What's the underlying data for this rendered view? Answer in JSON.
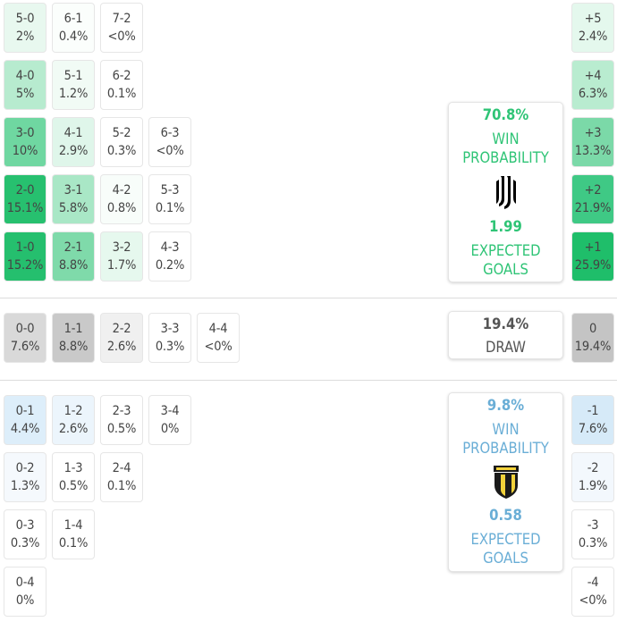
{
  "home": {
    "win_pct": "70.8%",
    "win_label": "WIN\nPROBABILITY",
    "xg_value": "1.99",
    "xg_label": "EXPECTED\nGOALS",
    "color": "#2fc476",
    "logo": "juventus-crest-icon"
  },
  "draw": {
    "pct": "19.4%",
    "label": "DRAW"
  },
  "away": {
    "win_pct": "9.8%",
    "win_label": "WIN\nPROBABILITY",
    "xg_value": "0.58",
    "xg_label": "EXPECTED\nGOALS",
    "color": "#6aaed6",
    "logo": "parma-crest-icon"
  },
  "home_scores": [
    [
      "5-0",
      "2%"
    ],
    [
      "6-1",
      "0.4%"
    ],
    [
      "7-2",
      "<0%"
    ],
    [
      "4-0",
      "5%"
    ],
    [
      "5-1",
      "1.2%"
    ],
    [
      "6-2",
      "0.1%"
    ],
    [
      "3-0",
      "10%"
    ],
    [
      "4-1",
      "2.9%"
    ],
    [
      "5-2",
      "0.3%"
    ],
    [
      "6-3",
      "<0%"
    ],
    [
      "2-0",
      "15.1%"
    ],
    [
      "3-1",
      "5.8%"
    ],
    [
      "4-2",
      "0.8%"
    ],
    [
      "5-3",
      "0.1%"
    ],
    [
      "1-0",
      "15.2%"
    ],
    [
      "2-1",
      "8.8%"
    ],
    [
      "3-2",
      "1.7%"
    ],
    [
      "4-3",
      "0.2%"
    ]
  ],
  "draw_scores": [
    [
      "0-0",
      "7.6%"
    ],
    [
      "1-1",
      "8.8%"
    ],
    [
      "2-2",
      "2.6%"
    ],
    [
      "3-3",
      "0.3%"
    ],
    [
      "4-4",
      "<0%"
    ]
  ],
  "away_scores": [
    [
      "0-1",
      "4.4%"
    ],
    [
      "1-2",
      "2.6%"
    ],
    [
      "2-3",
      "0.5%"
    ],
    [
      "3-4",
      "0%"
    ],
    [
      "0-2",
      "1.3%"
    ],
    [
      "1-3",
      "0.5%"
    ],
    [
      "2-4",
      "0.1%"
    ],
    [
      "0-3",
      "0.3%"
    ],
    [
      "1-4",
      "0.1%"
    ],
    [
      "0-4",
      "0%"
    ]
  ],
  "home_margins": [
    [
      "+5",
      "2.4%"
    ],
    [
      "+4",
      "6.3%"
    ],
    [
      "+3",
      "13.3%"
    ],
    [
      "+2",
      "21.9%"
    ],
    [
      "+1",
      "25.9%"
    ]
  ],
  "draw_margin": [
    "0",
    "19.4%"
  ],
  "away_margins": [
    [
      "-1",
      "7.6%"
    ],
    [
      "-2",
      "1.9%"
    ],
    [
      "-3",
      "0.3%"
    ],
    [
      "-4",
      "<0%"
    ]
  ]
}
